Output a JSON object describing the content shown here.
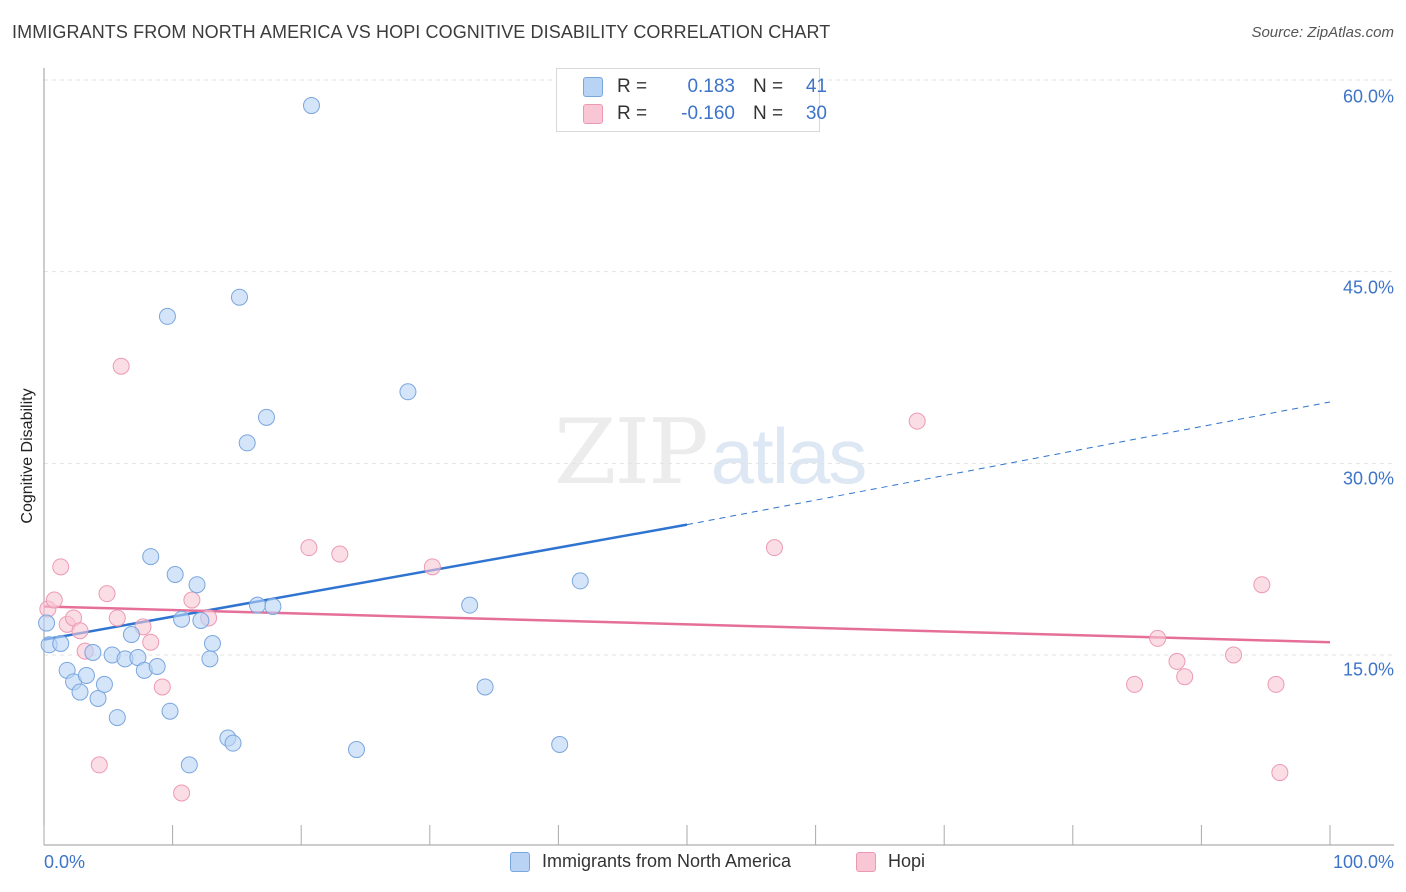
{
  "header": {
    "title": "IMMIGRANTS FROM NORTH AMERICA VS HOPI COGNITIVE DISABILITY CORRELATION CHART",
    "source": "Source: ZipAtlas.com"
  },
  "watermark": {
    "zip": "ZIP",
    "atlas": "atlas"
  },
  "legend": {
    "rows": [
      {
        "r_label": "R =",
        "r_value": "0.183",
        "n_label": "N =",
        "n_value": "41"
      },
      {
        "r_label": "R =",
        "r_value": "-0.160",
        "n_label": "N =",
        "n_value": "30"
      }
    ]
  },
  "colors": {
    "series1_fill": "#b9d3f5",
    "series1_stroke": "#7aa6de",
    "series1_line": "#2f74d0",
    "series2_fill": "#f8c6d5",
    "series2_stroke": "#ec9ab4",
    "series2_line": "#e56f99",
    "grid": "#e2e2e2",
    "tick_text": "#3d74c9"
  },
  "chart_data": {
    "type": "scatter",
    "title": "IMMIGRANTS FROM NORTH AMERICA VS HOPI COGNITIVE DISABILITY CORRELATION CHART",
    "xlabel": "",
    "ylabel": "Cognitive Disability",
    "xlim": [
      0,
      100
    ],
    "ylim": [
      0,
      62
    ],
    "y_ticks": [
      15,
      30,
      45,
      60
    ],
    "y_tick_labels": [
      "15.0%",
      "30.0%",
      "45.0%",
      "60.0%"
    ],
    "x_tick_labels": [
      "0.0%",
      "100.0%"
    ],
    "grid": true,
    "legend_position": "top-center",
    "series": [
      {
        "name": "Immigrants from North America",
        "r": 0.183,
        "n": 41,
        "trend": {
          "x0": 0,
          "y0": 16.2,
          "x1": 50,
          "y1": 25.2,
          "dashed_to_x": 100,
          "dashed_to_y": 34.8
        },
        "points": [
          [
            0.4,
            15.8
          ],
          [
            1.3,
            15.9
          ],
          [
            1.8,
            13.8
          ],
          [
            2.3,
            12.9
          ],
          [
            2.8,
            12.1
          ],
          [
            3.3,
            13.4
          ],
          [
            3.8,
            15.2
          ],
          [
            4.2,
            11.6
          ],
          [
            4.7,
            12.7
          ],
          [
            5.3,
            15.0
          ],
          [
            5.7,
            10.1
          ],
          [
            6.3,
            14.7
          ],
          [
            6.8,
            16.6
          ],
          [
            7.3,
            14.8
          ],
          [
            7.8,
            13.8
          ],
          [
            8.3,
            22.7
          ],
          [
            8.8,
            14.1
          ],
          [
            9.6,
            41.5
          ],
          [
            9.8,
            10.6
          ],
          [
            10.2,
            21.3
          ],
          [
            10.7,
            17.8
          ],
          [
            11.3,
            6.4
          ],
          [
            11.9,
            20.5
          ],
          [
            12.2,
            17.7
          ],
          [
            13.1,
            15.9
          ],
          [
            12.9,
            14.7
          ],
          [
            14.3,
            8.5
          ],
          [
            14.7,
            8.1
          ],
          [
            15.2,
            43.0
          ],
          [
            15.8,
            31.6
          ],
          [
            16.6,
            18.9
          ],
          [
            17.3,
            33.6
          ],
          [
            17.8,
            18.8
          ],
          [
            20.8,
            58.0
          ],
          [
            24.3,
            7.6
          ],
          [
            28.3,
            35.6
          ],
          [
            33.1,
            18.9
          ],
          [
            34.3,
            12.5
          ],
          [
            40.1,
            8.0
          ],
          [
            41.7,
            20.8
          ],
          [
            0.2,
            17.5
          ]
        ]
      },
      {
        "name": "Hopi",
        "r": -0.16,
        "n": 30,
        "trend": {
          "x0": 0,
          "y0": 18.8,
          "x1": 100,
          "y1": 16.0
        },
        "points": [
          [
            0.3,
            18.6
          ],
          [
            0.8,
            19.3
          ],
          [
            1.3,
            21.9
          ],
          [
            1.8,
            17.4
          ],
          [
            2.3,
            17.9
          ],
          [
            2.8,
            16.9
          ],
          [
            3.2,
            15.3
          ],
          [
            4.3,
            6.4
          ],
          [
            4.9,
            19.8
          ],
          [
            5.7,
            17.9
          ],
          [
            6.0,
            37.6
          ],
          [
            7.7,
            17.2
          ],
          [
            8.3,
            16.0
          ],
          [
            9.2,
            12.5
          ],
          [
            10.7,
            4.2
          ],
          [
            11.5,
            19.3
          ],
          [
            12.8,
            17.9
          ],
          [
            20.6,
            23.4
          ],
          [
            23.0,
            22.9
          ],
          [
            30.2,
            21.9
          ],
          [
            56.8,
            23.4
          ],
          [
            67.9,
            33.3
          ],
          [
            84.8,
            12.7
          ],
          [
            86.6,
            16.3
          ],
          [
            88.1,
            14.5
          ],
          [
            88.7,
            13.3
          ],
          [
            92.5,
            15.0
          ],
          [
            94.7,
            20.5
          ],
          [
            95.8,
            12.7
          ],
          [
            96.1,
            5.8
          ]
        ]
      }
    ]
  },
  "axis_labels": {
    "ylabel": "Cognitive Disability",
    "y_ticks": [
      "15.0%",
      "30.0%",
      "45.0%",
      "60.0%"
    ],
    "x_left": "0.0%",
    "x_right": "100.0%"
  },
  "bottom_legend": {
    "series1": "Immigrants from North America",
    "series2": "Hopi"
  }
}
